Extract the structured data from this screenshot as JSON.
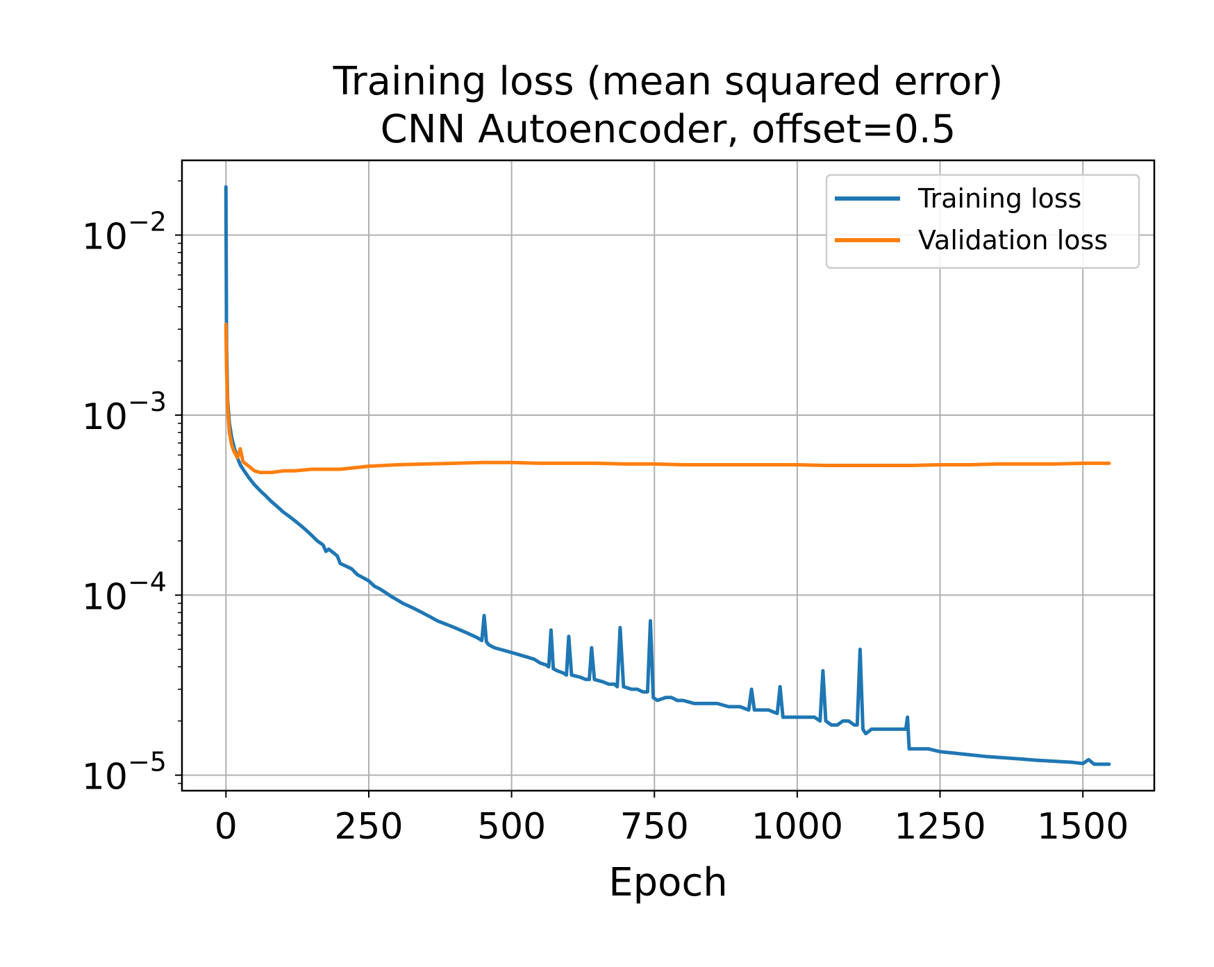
{
  "chart_data": {
    "type": "line",
    "title": "Training loss (mean squared error)",
    "subtitle": "CNN Autoencoder, offset=0.5",
    "xlabel": "Epoch",
    "ylabel": "",
    "yscale": "log",
    "xlim": [
      -77,
      1625
    ],
    "ylim": [
      8.2e-06,
      0.026
    ],
    "xticks": [
      0,
      250,
      500,
      750,
      1000,
      1250,
      1500
    ],
    "xtick_labels": [
      "0",
      "250",
      "500",
      "750",
      "1000",
      "1250",
      "1500"
    ],
    "yticks": [
      1e-05,
      0.0001,
      0.001,
      0.01
    ],
    "ytick_labels": [
      {
        "base": "10",
        "exp": "−5"
      },
      {
        "base": "10",
        "exp": "−4"
      },
      {
        "base": "10",
        "exp": "−3"
      },
      {
        "base": "10",
        "exp": "−2"
      }
    ],
    "grid": true,
    "legend_position": "upper right",
    "series": [
      {
        "name": "Training loss",
        "color": "#1f77b4",
        "points": [
          [
            0,
            0.0185
          ],
          [
            1,
            0.0024
          ],
          [
            3,
            0.0012
          ],
          [
            6,
            0.0009
          ],
          [
            10,
            0.00075
          ],
          [
            15,
            0.00065
          ],
          [
            20,
            0.00058
          ],
          [
            25,
            0.00053
          ],
          [
            30,
            0.0005
          ],
          [
            40,
            0.00045
          ],
          [
            50,
            0.00041
          ],
          [
            60,
            0.00038
          ],
          [
            70,
            0.000355
          ],
          [
            80,
            0.00033
          ],
          [
            90,
            0.00031
          ],
          [
            100,
            0.00029
          ],
          [
            110,
            0.000275
          ],
          [
            120,
            0.00026
          ],
          [
            130,
            0.000245
          ],
          [
            140,
            0.00023
          ],
          [
            150,
            0.000215
          ],
          [
            160,
            0.0002
          ],
          [
            170,
            0.00019
          ],
          [
            175,
            0.000175
          ],
          [
            180,
            0.00018
          ],
          [
            190,
            0.00017
          ],
          [
            195,
            0.000165
          ],
          [
            200,
            0.00015
          ],
          [
            210,
            0.000145
          ],
          [
            220,
            0.00014
          ],
          [
            230,
            0.00013
          ],
          [
            240,
            0.000125
          ],
          [
            250,
            0.00012
          ],
          [
            260,
            0.000112
          ],
          [
            270,
            0.000108
          ],
          [
            280,
            0.000103
          ],
          [
            290,
            9.8e-05
          ],
          [
            300,
            9.4e-05
          ],
          [
            310,
            9e-05
          ],
          [
            320,
            8.7e-05
          ],
          [
            330,
            8.4e-05
          ],
          [
            340,
            8.1e-05
          ],
          [
            350,
            7.8e-05
          ],
          [
            360,
            7.5e-05
          ],
          [
            370,
            7.2e-05
          ],
          [
            380,
            7e-05
          ],
          [
            390,
            6.8e-05
          ],
          [
            400,
            6.6e-05
          ],
          [
            410,
            6.4e-05
          ],
          [
            420,
            6.2e-05
          ],
          [
            430,
            6e-05
          ],
          [
            440,
            5.8e-05
          ],
          [
            448,
            5.6e-05
          ],
          [
            452,
            7.7e-05
          ],
          [
            456,
            5.5e-05
          ],
          [
            460,
            5.3e-05
          ],
          [
            470,
            5.1e-05
          ],
          [
            480,
            5e-05
          ],
          [
            490,
            4.9e-05
          ],
          [
            500,
            4.8e-05
          ],
          [
            510,
            4.7e-05
          ],
          [
            520,
            4.6e-05
          ],
          [
            530,
            4.5e-05
          ],
          [
            540,
            4.4e-05
          ],
          [
            550,
            4.2e-05
          ],
          [
            560,
            4.1e-05
          ],
          [
            565,
            4e-05
          ],
          [
            569,
            6.4e-05
          ],
          [
            573,
            3.9e-05
          ],
          [
            580,
            3.8e-05
          ],
          [
            590,
            3.7e-05
          ],
          [
            596,
            3.6e-05
          ],
          [
            600,
            5.9e-05
          ],
          [
            605,
            3.6e-05
          ],
          [
            620,
            3.5e-05
          ],
          [
            630,
            3.4e-05
          ],
          [
            636,
            3.4e-05
          ],
          [
            640,
            5.1e-05
          ],
          [
            645,
            3.4e-05
          ],
          [
            660,
            3.3e-05
          ],
          [
            670,
            3.2e-05
          ],
          [
            680,
            3.2e-05
          ],
          [
            685,
            3.1e-05
          ],
          [
            690,
            6.6e-05
          ],
          [
            696,
            3.1e-05
          ],
          [
            710,
            3e-05
          ],
          [
            720,
            3e-05
          ],
          [
            730,
            2.9e-05
          ],
          [
            738,
            2.9e-05
          ],
          [
            743,
            7.2e-05
          ],
          [
            748,
            2.7e-05
          ],
          [
            755,
            2.6e-05
          ],
          [
            770,
            2.7e-05
          ],
          [
            780,
            2.7e-05
          ],
          [
            790,
            2.6e-05
          ],
          [
            800,
            2.6e-05
          ],
          [
            820,
            2.5e-05
          ],
          [
            840,
            2.5e-05
          ],
          [
            860,
            2.5e-05
          ],
          [
            880,
            2.4e-05
          ],
          [
            900,
            2.4e-05
          ],
          [
            915,
            2.3e-05
          ],
          [
            920,
            3e-05
          ],
          [
            925,
            2.3e-05
          ],
          [
            950,
            2.3e-05
          ],
          [
            965,
            2.2e-05
          ],
          [
            970,
            3.1e-05
          ],
          [
            975,
            2.1e-05
          ],
          [
            990,
            2.1e-05
          ],
          [
            1010,
            2.1e-05
          ],
          [
            1030,
            2.1e-05
          ],
          [
            1040,
            2e-05
          ],
          [
            1045,
            3.8e-05
          ],
          [
            1050,
            2e-05
          ],
          [
            1060,
            1.9e-05
          ],
          [
            1070,
            1.9e-05
          ],
          [
            1080,
            2e-05
          ],
          [
            1090,
            2e-05
          ],
          [
            1100,
            1.9e-05
          ],
          [
            1105,
            1.9e-05
          ],
          [
            1110,
            5e-05
          ],
          [
            1115,
            1.8e-05
          ],
          [
            1120,
            1.7e-05
          ],
          [
            1130,
            1.8e-05
          ],
          [
            1140,
            1.8e-05
          ],
          [
            1150,
            1.8e-05
          ],
          [
            1160,
            1.8e-05
          ],
          [
            1175,
            1.8e-05
          ],
          [
            1190,
            1.8e-05
          ],
          [
            1193,
            2.1e-05
          ],
          [
            1196,
            1.4e-05
          ],
          [
            1210,
            1.4e-05
          ],
          [
            1230,
            1.4e-05
          ],
          [
            1250,
            1.35e-05
          ],
          [
            1270,
            1.33e-05
          ],
          [
            1300,
            1.3e-05
          ],
          [
            1330,
            1.27e-05
          ],
          [
            1360,
            1.25e-05
          ],
          [
            1390,
            1.23e-05
          ],
          [
            1420,
            1.21e-05
          ],
          [
            1440,
            1.2e-05
          ],
          [
            1460,
            1.19e-05
          ],
          [
            1480,
            1.18e-05
          ],
          [
            1500,
            1.16e-05
          ],
          [
            1510,
            1.22e-05
          ],
          [
            1520,
            1.15e-05
          ],
          [
            1546,
            1.15e-05
          ]
        ]
      },
      {
        "name": "Validation loss",
        "color": "#ff7f0e",
        "points": [
          [
            0,
            0.0032
          ],
          [
            1,
            0.0018
          ],
          [
            3,
            0.0011
          ],
          [
            6,
            0.0008
          ],
          [
            10,
            0.00068
          ],
          [
            15,
            0.00062
          ],
          [
            20,
            0.00058
          ],
          [
            25,
            0.00065
          ],
          [
            30,
            0.00055
          ],
          [
            40,
            0.00052
          ],
          [
            50,
            0.00049
          ],
          [
            60,
            0.00048
          ],
          [
            80,
            0.00048
          ],
          [
            100,
            0.00049
          ],
          [
            120,
            0.00049
          ],
          [
            150,
            0.0005
          ],
          [
            200,
            0.0005
          ],
          [
            250,
            0.00052
          ],
          [
            300,
            0.00053
          ],
          [
            350,
            0.000535
          ],
          [
            400,
            0.00054
          ],
          [
            450,
            0.000545
          ],
          [
            500,
            0.000545
          ],
          [
            550,
            0.00054
          ],
          [
            600,
            0.00054
          ],
          [
            650,
            0.00054
          ],
          [
            700,
            0.000535
          ],
          [
            750,
            0.000535
          ],
          [
            800,
            0.00053
          ],
          [
            850,
            0.00053
          ],
          [
            900,
            0.00053
          ],
          [
            950,
            0.00053
          ],
          [
            1000,
            0.00053
          ],
          [
            1050,
            0.000525
          ],
          [
            1100,
            0.000525
          ],
          [
            1150,
            0.000525
          ],
          [
            1200,
            0.000525
          ],
          [
            1250,
            0.00053
          ],
          [
            1300,
            0.00053
          ],
          [
            1350,
            0.000535
          ],
          [
            1400,
            0.000535
          ],
          [
            1450,
            0.000535
          ],
          [
            1500,
            0.00054
          ],
          [
            1546,
            0.00054
          ]
        ]
      }
    ]
  }
}
